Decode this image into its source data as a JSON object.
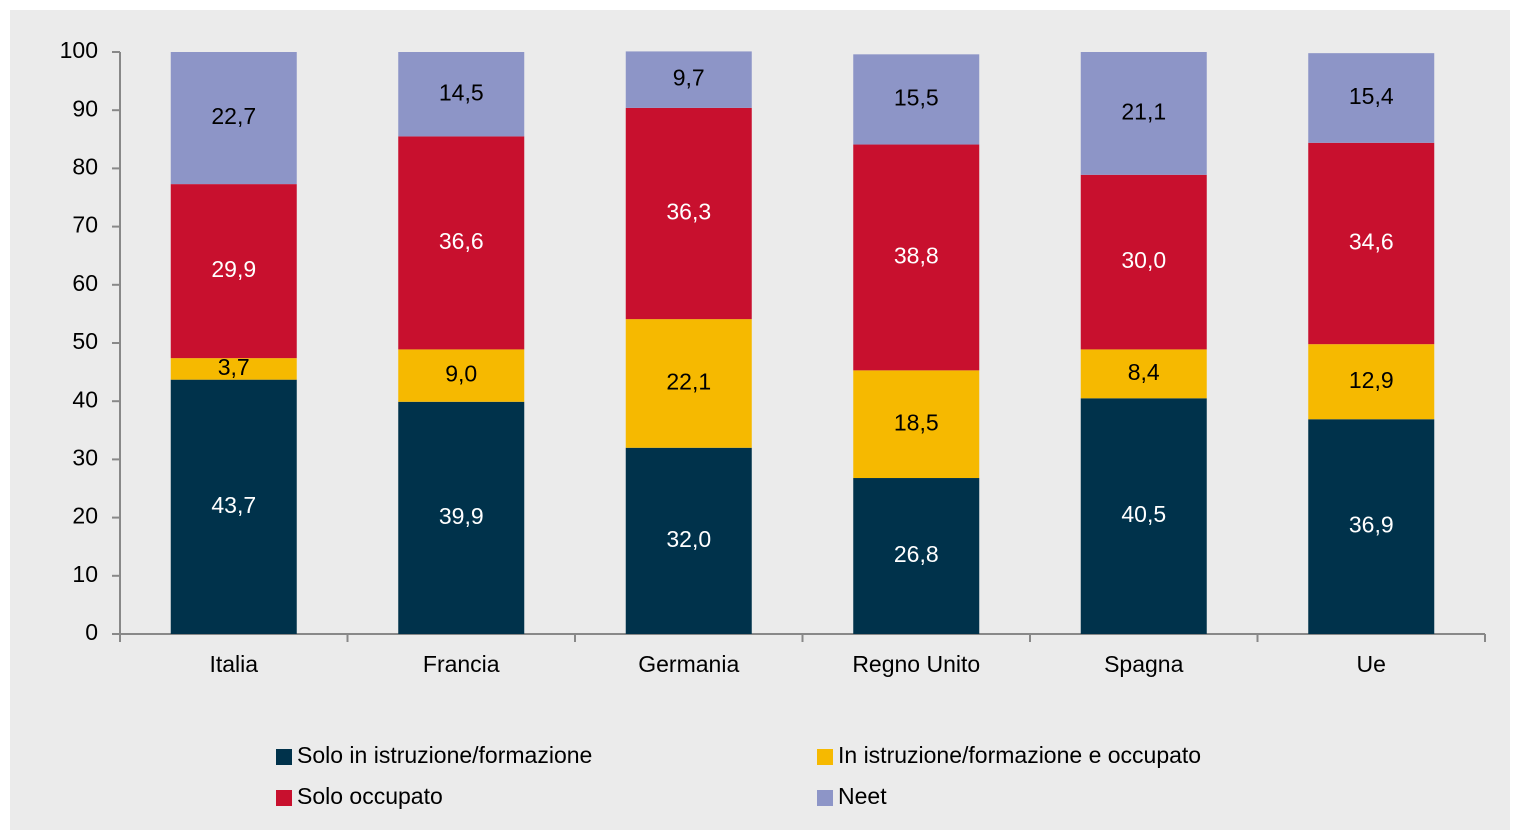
{
  "chart_data": {
    "type": "stacked_bar",
    "categories": [
      "Italia",
      "Francia",
      "Germania",
      "Regno Unito",
      "Spagna",
      "Ue"
    ],
    "series": [
      {
        "name": "Solo in istruzione/formazione",
        "color": "#00324b",
        "values": [
          43.7,
          39.9,
          32.0,
          26.8,
          40.5,
          36.9
        ],
        "value_labels": [
          "43,7",
          "39,9",
          "32,0",
          "26,8",
          "40,5",
          "36,9"
        ]
      },
      {
        "name": "In istruzione/formazione e occupato",
        "color": "#f6b900",
        "values": [
          3.7,
          9.0,
          22.1,
          18.5,
          8.4,
          12.9
        ],
        "value_labels": [
          "3,7",
          "9,0",
          "22,1",
          "18,5",
          "8,4",
          "12,9"
        ]
      },
      {
        "name": "Solo occupato",
        "color": "#c8102e",
        "values": [
          29.9,
          36.6,
          36.3,
          38.8,
          30.0,
          34.6
        ],
        "value_labels": [
          "29,9",
          "36,6",
          "36,3",
          "38,8",
          "30,0",
          "34,6"
        ]
      },
      {
        "name": "Neet",
        "color": "#8d95c7",
        "values": [
          22.7,
          14.5,
          9.7,
          15.5,
          21.1,
          15.4
        ],
        "value_labels": [
          "22,7",
          "14,5",
          "9,7",
          "15,5",
          "21,1",
          "15,4"
        ]
      }
    ],
    "ylim": [
      0,
      100
    ],
    "yticks": [
      0,
      10,
      20,
      30,
      40,
      50,
      60,
      70,
      80,
      90,
      100
    ],
    "grid": false
  }
}
